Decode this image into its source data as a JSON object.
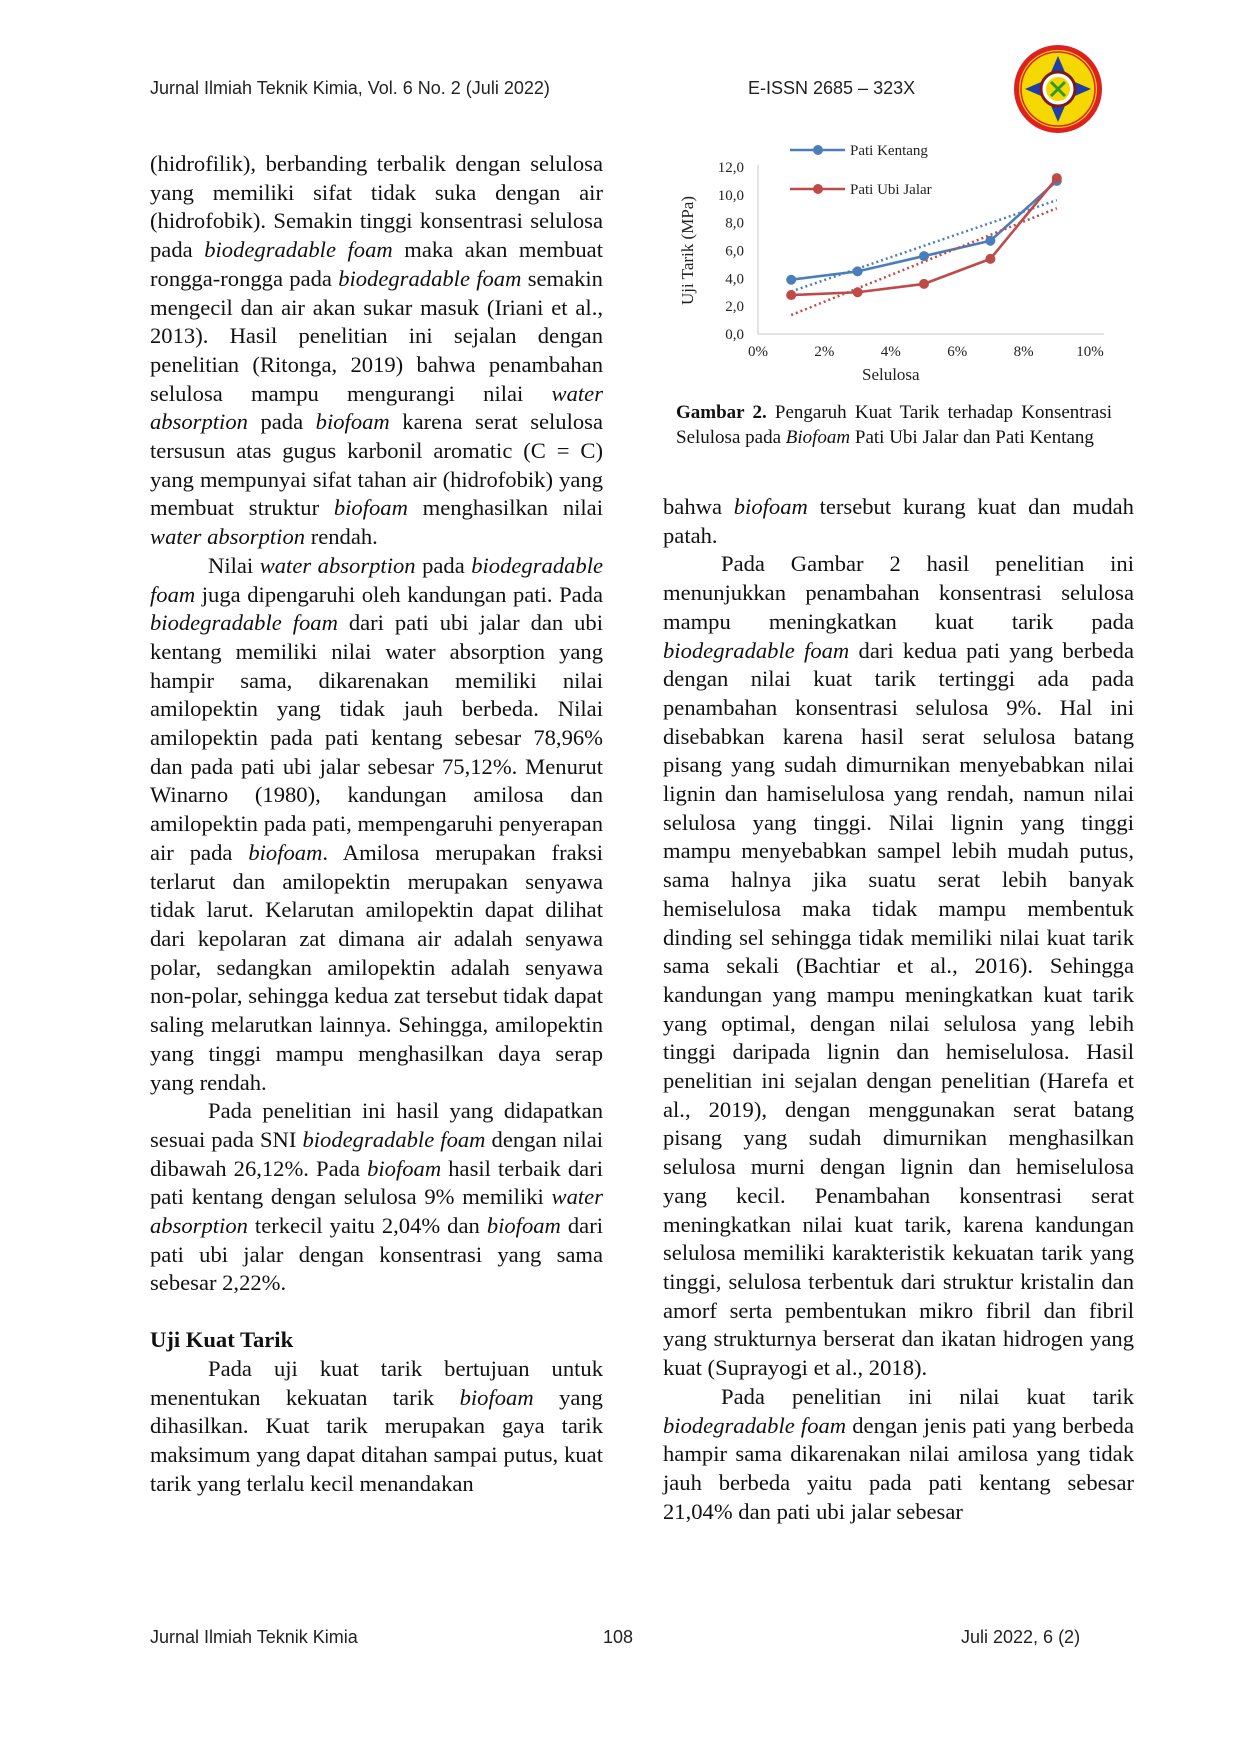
{
  "header": {
    "journal": "Jurnal Ilmiah Teknik Kimia, Vol. 6 No. 2 (Juli 2022)",
    "issn": "E-ISSN 2685 – 323X",
    "logo": "journal-emblem"
  },
  "left_column": {
    "paragraphs": [
      {
        "indent": false,
        "segments": [
          {
            "t": "(hidrofilik), berbanding terbalik dengan selulosa yang memiliki sifat tidak suka dengan air (hidrofobik). Semakin tinggi konsentrasi selulosa pada "
          },
          {
            "t": "biodegradable foam",
            "i": true
          },
          {
            "t": " maka akan membuat rongga-rongga pada "
          },
          {
            "t": "biodegradable foam",
            "i": true
          },
          {
            "t": " semakin mengecil dan air akan sukar masuk (Iriani et al., 2013). Hasil penelitian ini sejalan dengan penelitian (Ritonga, 2019) bahwa penambahan selulosa mampu mengurangi nilai "
          },
          {
            "t": "water absorption",
            "i": true
          },
          {
            "t": " pada "
          },
          {
            "t": "biofoam",
            "i": true
          },
          {
            "t": " karena serat selulosa tersusun atas gugus karbonil aromatic (C = C) yang mempunyai sifat tahan air (hidrofobik) yang membuat struktur "
          },
          {
            "t": "biofoam",
            "i": true
          },
          {
            "t": " menghasilkan nilai "
          },
          {
            "t": "water absorption",
            "i": true
          },
          {
            "t": " rendah."
          }
        ]
      },
      {
        "indent": true,
        "segments": [
          {
            "t": "Nilai "
          },
          {
            "t": "water absorption",
            "i": true
          },
          {
            "t": " pada "
          },
          {
            "t": "biodegradable foam",
            "i": true
          },
          {
            "t": " juga dipengaruhi oleh kandungan pati. Pada "
          },
          {
            "t": "biodegradable foam",
            "i": true
          },
          {
            "t": " dari pati ubi jalar dan ubi kentang memiliki nilai water absorption  yang hampir sama, dikarenakan memiliki nilai amilopektin yang tidak jauh berbeda. Nilai amilopektin pada pati kentang sebesar 78,96% dan pada pati ubi jalar sebesar 75,12%. Menurut Winarno (1980), kandungan amilosa dan amilopektin pada pati, mempengaruhi penyerapan air pada "
          },
          {
            "t": "biofoam",
            "i": true
          },
          {
            "t": ". Amilosa merupakan fraksi terlarut dan amilopektin merupakan senyawa tidak larut. Kelarutan amilopektin dapat dilihat dari kepolaran zat dimana air adalah senyawa polar, sedangkan amilopektin adalah senyawa non-polar, sehingga kedua zat tersebut tidak dapat saling melarutkan lainnya. Sehingga, amilopektin yang tinggi mampu menghasilkan daya serap yang rendah."
          }
        ]
      },
      {
        "indent": true,
        "segments": [
          {
            "t": "Pada penelitian ini hasil yang didapatkan sesuai pada SNI "
          },
          {
            "t": "biodegradable foam",
            "i": true
          },
          {
            "t": " dengan nilai dibawah 26,12%. Pada "
          },
          {
            "t": "biofoam",
            "i": true
          },
          {
            "t": " hasil terbaik dari pati kentang dengan selulosa 9% memiliki "
          },
          {
            "t": "water absorption",
            "i": true
          },
          {
            "t": " terkecil yaitu 2,04% dan "
          },
          {
            "t": "biofoam",
            "i": true
          },
          {
            "t": " dari pati ubi jalar dengan konsentrasi yang sama sebesar 2,22%."
          }
        ]
      }
    ],
    "heading": "Uji Kuat Tarik",
    "after_heading": [
      {
        "indent": true,
        "segments": [
          {
            "t": "Pada uji kuat tarik bertujuan untuk menentukan kekuatan tarik "
          },
          {
            "t": "biofoam",
            "i": true
          },
          {
            "t": " yang dihasilkan. Kuat tarik merupakan gaya tarik maksimum yang dapat ditahan sampai putus, kuat tarik yang terlalu kecil menandakan"
          }
        ]
      }
    ]
  },
  "figure": {
    "caption_label": "Gambar 2.",
    "caption_segments": [
      {
        "t": " Pengaruh Kuat Tarik terhadap Konsentrasi Selulosa pada "
      },
      {
        "t": "Biofoam",
        "i": true
      },
      {
        "t": " Pati Ubi Jalar dan Pati Kentang"
      }
    ]
  },
  "chart_data": {
    "type": "line",
    "title": "",
    "xlabel": "Selulosa",
    "ylabel": "Uji Tarik (MPa)",
    "x_ticks": [
      "0%",
      "2%",
      "4%",
      "6%",
      "8%",
      "10%"
    ],
    "y_ticks": [
      "0,0",
      "2,0",
      "4,0",
      "6,0",
      "8,0",
      "10,0",
      "12,0"
    ],
    "xlim": [
      0,
      10
    ],
    "ylim": [
      0,
      12
    ],
    "x": [
      1,
      3,
      5,
      7,
      9
    ],
    "grid": false,
    "legend_position": "top-left",
    "trendlines": "linear, dotted",
    "series": [
      {
        "name": "Pati Kentang",
        "color": "#4a7ebb",
        "values": [
          3.9,
          4.5,
          5.6,
          6.7,
          11.0
        ]
      },
      {
        "name": "Pati Ubi Jalar",
        "color": "#be4b48",
        "values": [
          2.8,
          3.0,
          3.6,
          5.4,
          11.2
        ]
      }
    ]
  },
  "right_column": {
    "paragraphs": [
      {
        "indent": false,
        "segments": [
          {
            "t": "bahwa "
          },
          {
            "t": "biofoam",
            "i": true
          },
          {
            "t": " tersebut kurang kuat dan mudah patah."
          }
        ]
      },
      {
        "indent": true,
        "segments": [
          {
            "t": "Pada Gambar 2 hasil penelitian ini menunjukkan penambahan konsentrasi selulosa mampu meningkatkan kuat tarik pada "
          },
          {
            "t": "biodegradable foam",
            "i": true
          },
          {
            "t": " dari kedua pati yang berbeda dengan nilai kuat tarik tertinggi ada pada penambahan konsentrasi selulosa 9%. Hal ini disebabkan karena hasil serat selulosa batang pisang yang sudah dimurnikan menyebabkan nilai lignin dan hamiselulosa yang rendah, namun nilai selulosa yang tinggi. Nilai lignin yang tinggi mampu menyebabkan sampel lebih mudah putus, sama halnya jika suatu serat lebih banyak hemiselulosa maka tidak mampu membentuk dinding sel sehingga tidak memiliki nilai kuat tarik sama sekali (Bachtiar et al., 2016). Sehingga kandungan yang mampu meningkatkan kuat tarik yang optimal, dengan nilai selulosa yang lebih tinggi daripada lignin dan hemiselulosa. Hasil penelitian ini sejalan dengan penelitian (Harefa et al., 2019),  dengan menggunakan serat batang pisang yang sudah dimurnikan menghasilkan selulosa murni dengan lignin dan hemiselulosa yang kecil. Penambahan konsentrasi serat meningkatkan nilai kuat tarik, karena kandungan selulosa memiliki karakteristik kekuatan tarik yang tinggi, selulosa terbentuk dari struktur kristalin dan amorf serta pembentukan mikro fibril dan fibril yang strukturnya berserat dan ikatan hidrogen yang kuat (Suprayogi et al., 2018)."
          }
        ]
      },
      {
        "indent": true,
        "segments": [
          {
            "t": "Pada penelitian ini nilai kuat tarik "
          },
          {
            "t": "biodegradable foam",
            "i": true
          },
          {
            "t": " dengan jenis pati yang berbeda hampir sama dikarenakan nilai amilosa yang tidak jauh berbeda yaitu pada pati kentang sebesar 21,04% dan pati ubi jalar sebesar"
          }
        ]
      }
    ]
  },
  "footer": {
    "journal": "Jurnal Ilmiah Teknik Kimia",
    "page": "108",
    "issue": "Juli 2022, 6 (2)"
  }
}
